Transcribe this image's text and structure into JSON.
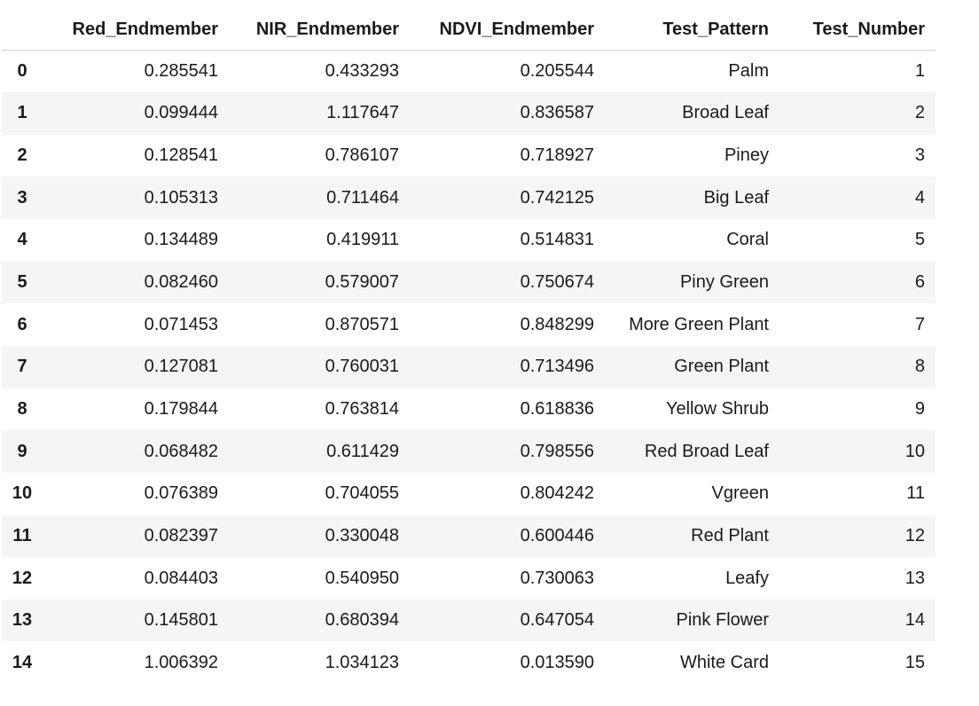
{
  "table": {
    "index_header": "",
    "columns": [
      "Red_Endmember",
      "NIR_Endmember",
      "NDVI_Endmember",
      "Test_Pattern",
      "Test_Number"
    ],
    "rows": [
      {
        "index": "0",
        "cells": [
          "0.285541",
          "0.433293",
          "0.205544",
          "Palm",
          "1"
        ]
      },
      {
        "index": "1",
        "cells": [
          "0.099444",
          "1.117647",
          "0.836587",
          "Broad Leaf",
          "2"
        ]
      },
      {
        "index": "2",
        "cells": [
          "0.128541",
          "0.786107",
          "0.718927",
          "Piney",
          "3"
        ]
      },
      {
        "index": "3",
        "cells": [
          "0.105313",
          "0.711464",
          "0.742125",
          "Big Leaf",
          "4"
        ]
      },
      {
        "index": "4",
        "cells": [
          "0.134489",
          "0.419911",
          "0.514831",
          "Coral",
          "5"
        ]
      },
      {
        "index": "5",
        "cells": [
          "0.082460",
          "0.579007",
          "0.750674",
          "Piny Green",
          "6"
        ]
      },
      {
        "index": "6",
        "cells": [
          "0.071453",
          "0.870571",
          "0.848299",
          "More Green Plant",
          "7"
        ]
      },
      {
        "index": "7",
        "cells": [
          "0.127081",
          "0.760031",
          "0.713496",
          "Green Plant",
          "8"
        ]
      },
      {
        "index": "8",
        "cells": [
          "0.179844",
          "0.763814",
          "0.618836",
          "Yellow Shrub",
          "9"
        ]
      },
      {
        "index": "9",
        "cells": [
          "0.068482",
          "0.611429",
          "0.798556",
          "Red Broad Leaf",
          "10"
        ]
      },
      {
        "index": "10",
        "cells": [
          "0.076389",
          "0.704055",
          "0.804242",
          "Vgreen",
          "11"
        ]
      },
      {
        "index": "11",
        "cells": [
          "0.082397",
          "0.330048",
          "0.600446",
          "Red Plant",
          "12"
        ]
      },
      {
        "index": "12",
        "cells": [
          "0.084403",
          "0.540950",
          "0.730063",
          "Leafy",
          "13"
        ]
      },
      {
        "index": "13",
        "cells": [
          "0.145801",
          "0.680394",
          "0.647054",
          "Pink Flower",
          "14"
        ]
      },
      {
        "index": "14",
        "cells": [
          "1.006392",
          "1.034123",
          "0.013590",
          "White Card",
          "15"
        ]
      }
    ]
  },
  "colors": {
    "text": "#1a1a1a",
    "stripe": "#f5f5f5",
    "header_rule": "#cfcfcf"
  }
}
